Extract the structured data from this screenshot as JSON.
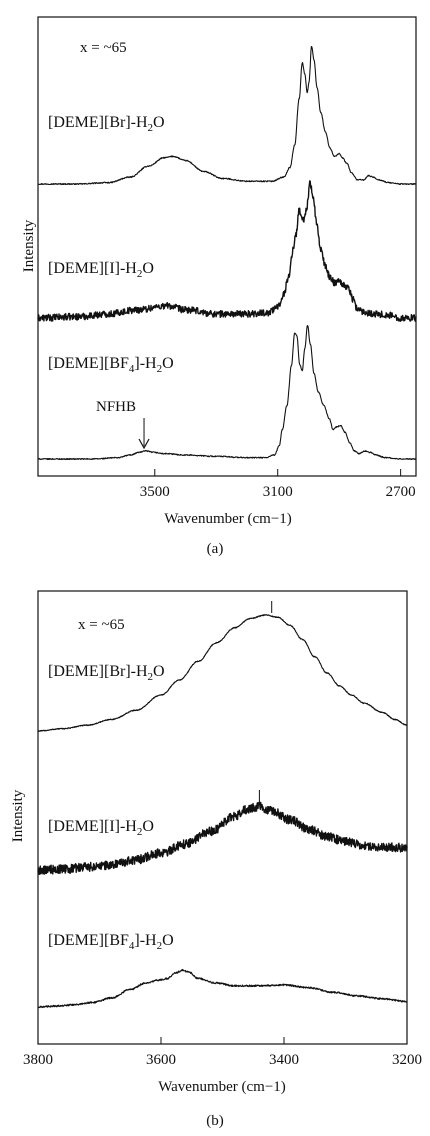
{
  "chart_data": [
    {
      "type": "line",
      "panel_label": "(a)",
      "xlabel": "Wavenumber (cm−1)",
      "ylabel": "Intensity",
      "xlim": [
        3880,
        2650
      ],
      "x_tick_labels": [
        "3500",
        "3100",
        "2700"
      ],
      "x_ticks": [
        3500,
        3100,
        2700
      ],
      "annotation_x": "x = ~65",
      "arrow_label": "NFHB",
      "arrow_x": 3535,
      "series": [
        {
          "name": "[DEME][Br]-H2O",
          "noise": 0.004,
          "points": [
            [
              3880,
              0.0
            ],
            [
              3750,
              0.0
            ],
            [
              3650,
              0.01
            ],
            [
              3580,
              0.05
            ],
            [
              3520,
              0.13
            ],
            [
              3470,
              0.19
            ],
            [
              3440,
              0.2
            ],
            [
              3400,
              0.17
            ],
            [
              3340,
              0.09
            ],
            [
              3280,
              0.04
            ],
            [
              3200,
              0.02
            ],
            [
              3120,
              0.02
            ],
            [
              3080,
              0.05
            ],
            [
              3060,
              0.12
            ],
            [
              3045,
              0.28
            ],
            [
              3030,
              0.62
            ],
            [
              3020,
              0.88
            ],
            [
              3012,
              0.8
            ],
            [
              3004,
              0.66
            ],
            [
              2998,
              0.74
            ],
            [
              2990,
              1.0
            ],
            [
              2982,
              0.9
            ],
            [
              2972,
              0.7
            ],
            [
              2960,
              0.52
            ],
            [
              2945,
              0.38
            ],
            [
              2930,
              0.26
            ],
            [
              2915,
              0.2
            ],
            [
              2900,
              0.22
            ],
            [
              2890,
              0.19
            ],
            [
              2875,
              0.15
            ],
            [
              2860,
              0.08
            ],
            [
              2840,
              0.03
            ],
            [
              2820,
              0.03
            ],
            [
              2805,
              0.06
            ],
            [
              2790,
              0.05
            ],
            [
              2770,
              0.03
            ],
            [
              2740,
              0.01
            ],
            [
              2700,
              0.0
            ],
            [
              2650,
              0.0
            ]
          ]
        },
        {
          "name": "[DEME][I]-H2O",
          "noise": 0.025,
          "points": [
            [
              3880,
              0.0
            ],
            [
              3750,
              0.01
            ],
            [
              3650,
              0.03
            ],
            [
              3560,
              0.06
            ],
            [
              3460,
              0.09
            ],
            [
              3400,
              0.06
            ],
            [
              3300,
              0.03
            ],
            [
              3200,
              0.03
            ],
            [
              3130,
              0.04
            ],
            [
              3100,
              0.08
            ],
            [
              3080,
              0.18
            ],
            [
              3065,
              0.3
            ],
            [
              3050,
              0.5
            ],
            [
              3040,
              0.62
            ],
            [
              3030,
              0.8
            ],
            [
              3022,
              0.74
            ],
            [
              3015,
              0.72
            ],
            [
              3005,
              0.82
            ],
            [
              2995,
              1.0
            ],
            [
              2985,
              0.88
            ],
            [
              2972,
              0.68
            ],
            [
              2960,
              0.5
            ],
            [
              2945,
              0.38
            ],
            [
              2930,
              0.3
            ],
            [
              2915,
              0.26
            ],
            [
              2900,
              0.28
            ],
            [
              2885,
              0.24
            ],
            [
              2870,
              0.22
            ],
            [
              2855,
              0.14
            ],
            [
              2840,
              0.06
            ],
            [
              2810,
              0.04
            ],
            [
              2780,
              0.03
            ],
            [
              2740,
              0.02
            ],
            [
              2700,
              0.0
            ],
            [
              2650,
              0.0
            ]
          ]
        },
        {
          "name": "[DEME][BF4]-H2O",
          "noise": 0.004,
          "points": [
            [
              3880,
              0.0
            ],
            [
              3700,
              0.0
            ],
            [
              3620,
              0.01
            ],
            [
              3580,
              0.03
            ],
            [
              3550,
              0.05
            ],
            [
              3530,
              0.06
            ],
            [
              3505,
              0.05
            ],
            [
              3470,
              0.04
            ],
            [
              3400,
              0.03
            ],
            [
              3300,
              0.02
            ],
            [
              3200,
              0.01
            ],
            [
              3140,
              0.01
            ],
            [
              3110,
              0.03
            ],
            [
              3095,
              0.1
            ],
            [
              3085,
              0.22
            ],
            [
              3070,
              0.4
            ],
            [
              3055,
              0.7
            ],
            [
              3045,
              0.94
            ],
            [
              3038,
              0.92
            ],
            [
              3028,
              0.7
            ],
            [
              3020,
              0.66
            ],
            [
              3012,
              0.82
            ],
            [
              3003,
              1.0
            ],
            [
              2994,
              0.86
            ],
            [
              2982,
              0.64
            ],
            [
              2968,
              0.5
            ],
            [
              2950,
              0.4
            ],
            [
              2932,
              0.3
            ],
            [
              2920,
              0.22
            ],
            [
              2908,
              0.24
            ],
            [
              2895,
              0.25
            ],
            [
              2882,
              0.2
            ],
            [
              2865,
              0.12
            ],
            [
              2850,
              0.06
            ],
            [
              2835,
              0.04
            ],
            [
              2815,
              0.06
            ],
            [
              2800,
              0.05
            ],
            [
              2780,
              0.03
            ],
            [
              2750,
              0.01
            ],
            [
              2700,
              0.0
            ],
            [
              2650,
              0.0
            ]
          ]
        }
      ]
    },
    {
      "type": "line",
      "panel_label": "(b)",
      "xlabel": "Wavenumber (cm−1)",
      "ylabel": "Intensity",
      "xlim": [
        3800,
        3200
      ],
      "x_tick_labels": [
        "3800",
        "3600",
        "3400",
        "3200"
      ],
      "x_ticks": [
        3800,
        3600,
        3400,
        3200
      ],
      "annotation_x": "x = ~65",
      "marker_positions": [
        3420,
        3440
      ],
      "series": [
        {
          "name": "[DEME][Br]-H2O",
          "noise": 0.004,
          "points": [
            [
              3800,
              0.0
            ],
            [
              3760,
              0.02
            ],
            [
              3720,
              0.05
            ],
            [
              3680,
              0.1
            ],
            [
              3640,
              0.18
            ],
            [
              3600,
              0.31
            ],
            [
              3570,
              0.44
            ],
            [
              3540,
              0.6
            ],
            [
              3510,
              0.76
            ],
            [
              3480,
              0.89
            ],
            [
              3455,
              0.97
            ],
            [
              3430,
              1.0
            ],
            [
              3410,
              0.98
            ],
            [
              3390,
              0.91
            ],
            [
              3370,
              0.79
            ],
            [
              3350,
              0.64
            ],
            [
              3330,
              0.5
            ],
            [
              3310,
              0.39
            ],
            [
              3290,
              0.31
            ],
            [
              3270,
              0.24
            ],
            [
              3240,
              0.16
            ],
            [
              3220,
              0.1
            ],
            [
              3200,
              0.05
            ]
          ]
        },
        {
          "name": "[DEME][I]-H2O",
          "noise": 0.06,
          "points": [
            [
              3800,
              0.0
            ],
            [
              3760,
              0.01
            ],
            [
              3720,
              0.04
            ],
            [
              3680,
              0.07
            ],
            [
              3640,
              0.14
            ],
            [
              3600,
              0.23
            ],
            [
              3560,
              0.35
            ],
            [
              3520,
              0.52
            ],
            [
              3480,
              0.72
            ],
            [
              3460,
              0.82
            ],
            [
              3440,
              0.86
            ],
            [
              3420,
              0.8
            ],
            [
              3390,
              0.68
            ],
            [
              3360,
              0.55
            ],
            [
              3330,
              0.45
            ],
            [
              3300,
              0.38
            ],
            [
              3270,
              0.33
            ],
            [
              3240,
              0.31
            ],
            [
              3200,
              0.3
            ]
          ]
        },
        {
          "name": "[DEME][BF4]-H2O",
          "noise": 0.018,
          "points": [
            [
              3800,
              0.0
            ],
            [
              3770,
              0.02
            ],
            [
              3740,
              0.05
            ],
            [
              3710,
              0.1
            ],
            [
              3680,
              0.2
            ],
            [
              3650,
              0.38
            ],
            [
              3625,
              0.52
            ],
            [
              3605,
              0.58
            ],
            [
              3590,
              0.62
            ],
            [
              3575,
              0.75
            ],
            [
              3565,
              0.8
            ],
            [
              3555,
              0.76
            ],
            [
              3540,
              0.62
            ],
            [
              3510,
              0.52
            ],
            [
              3480,
              0.46
            ],
            [
              3440,
              0.46
            ],
            [
              3400,
              0.48
            ],
            [
              3360,
              0.42
            ],
            [
              3320,
              0.32
            ],
            [
              3280,
              0.24
            ],
            [
              3240,
              0.18
            ],
            [
              3200,
              0.12
            ]
          ]
        }
      ]
    }
  ]
}
